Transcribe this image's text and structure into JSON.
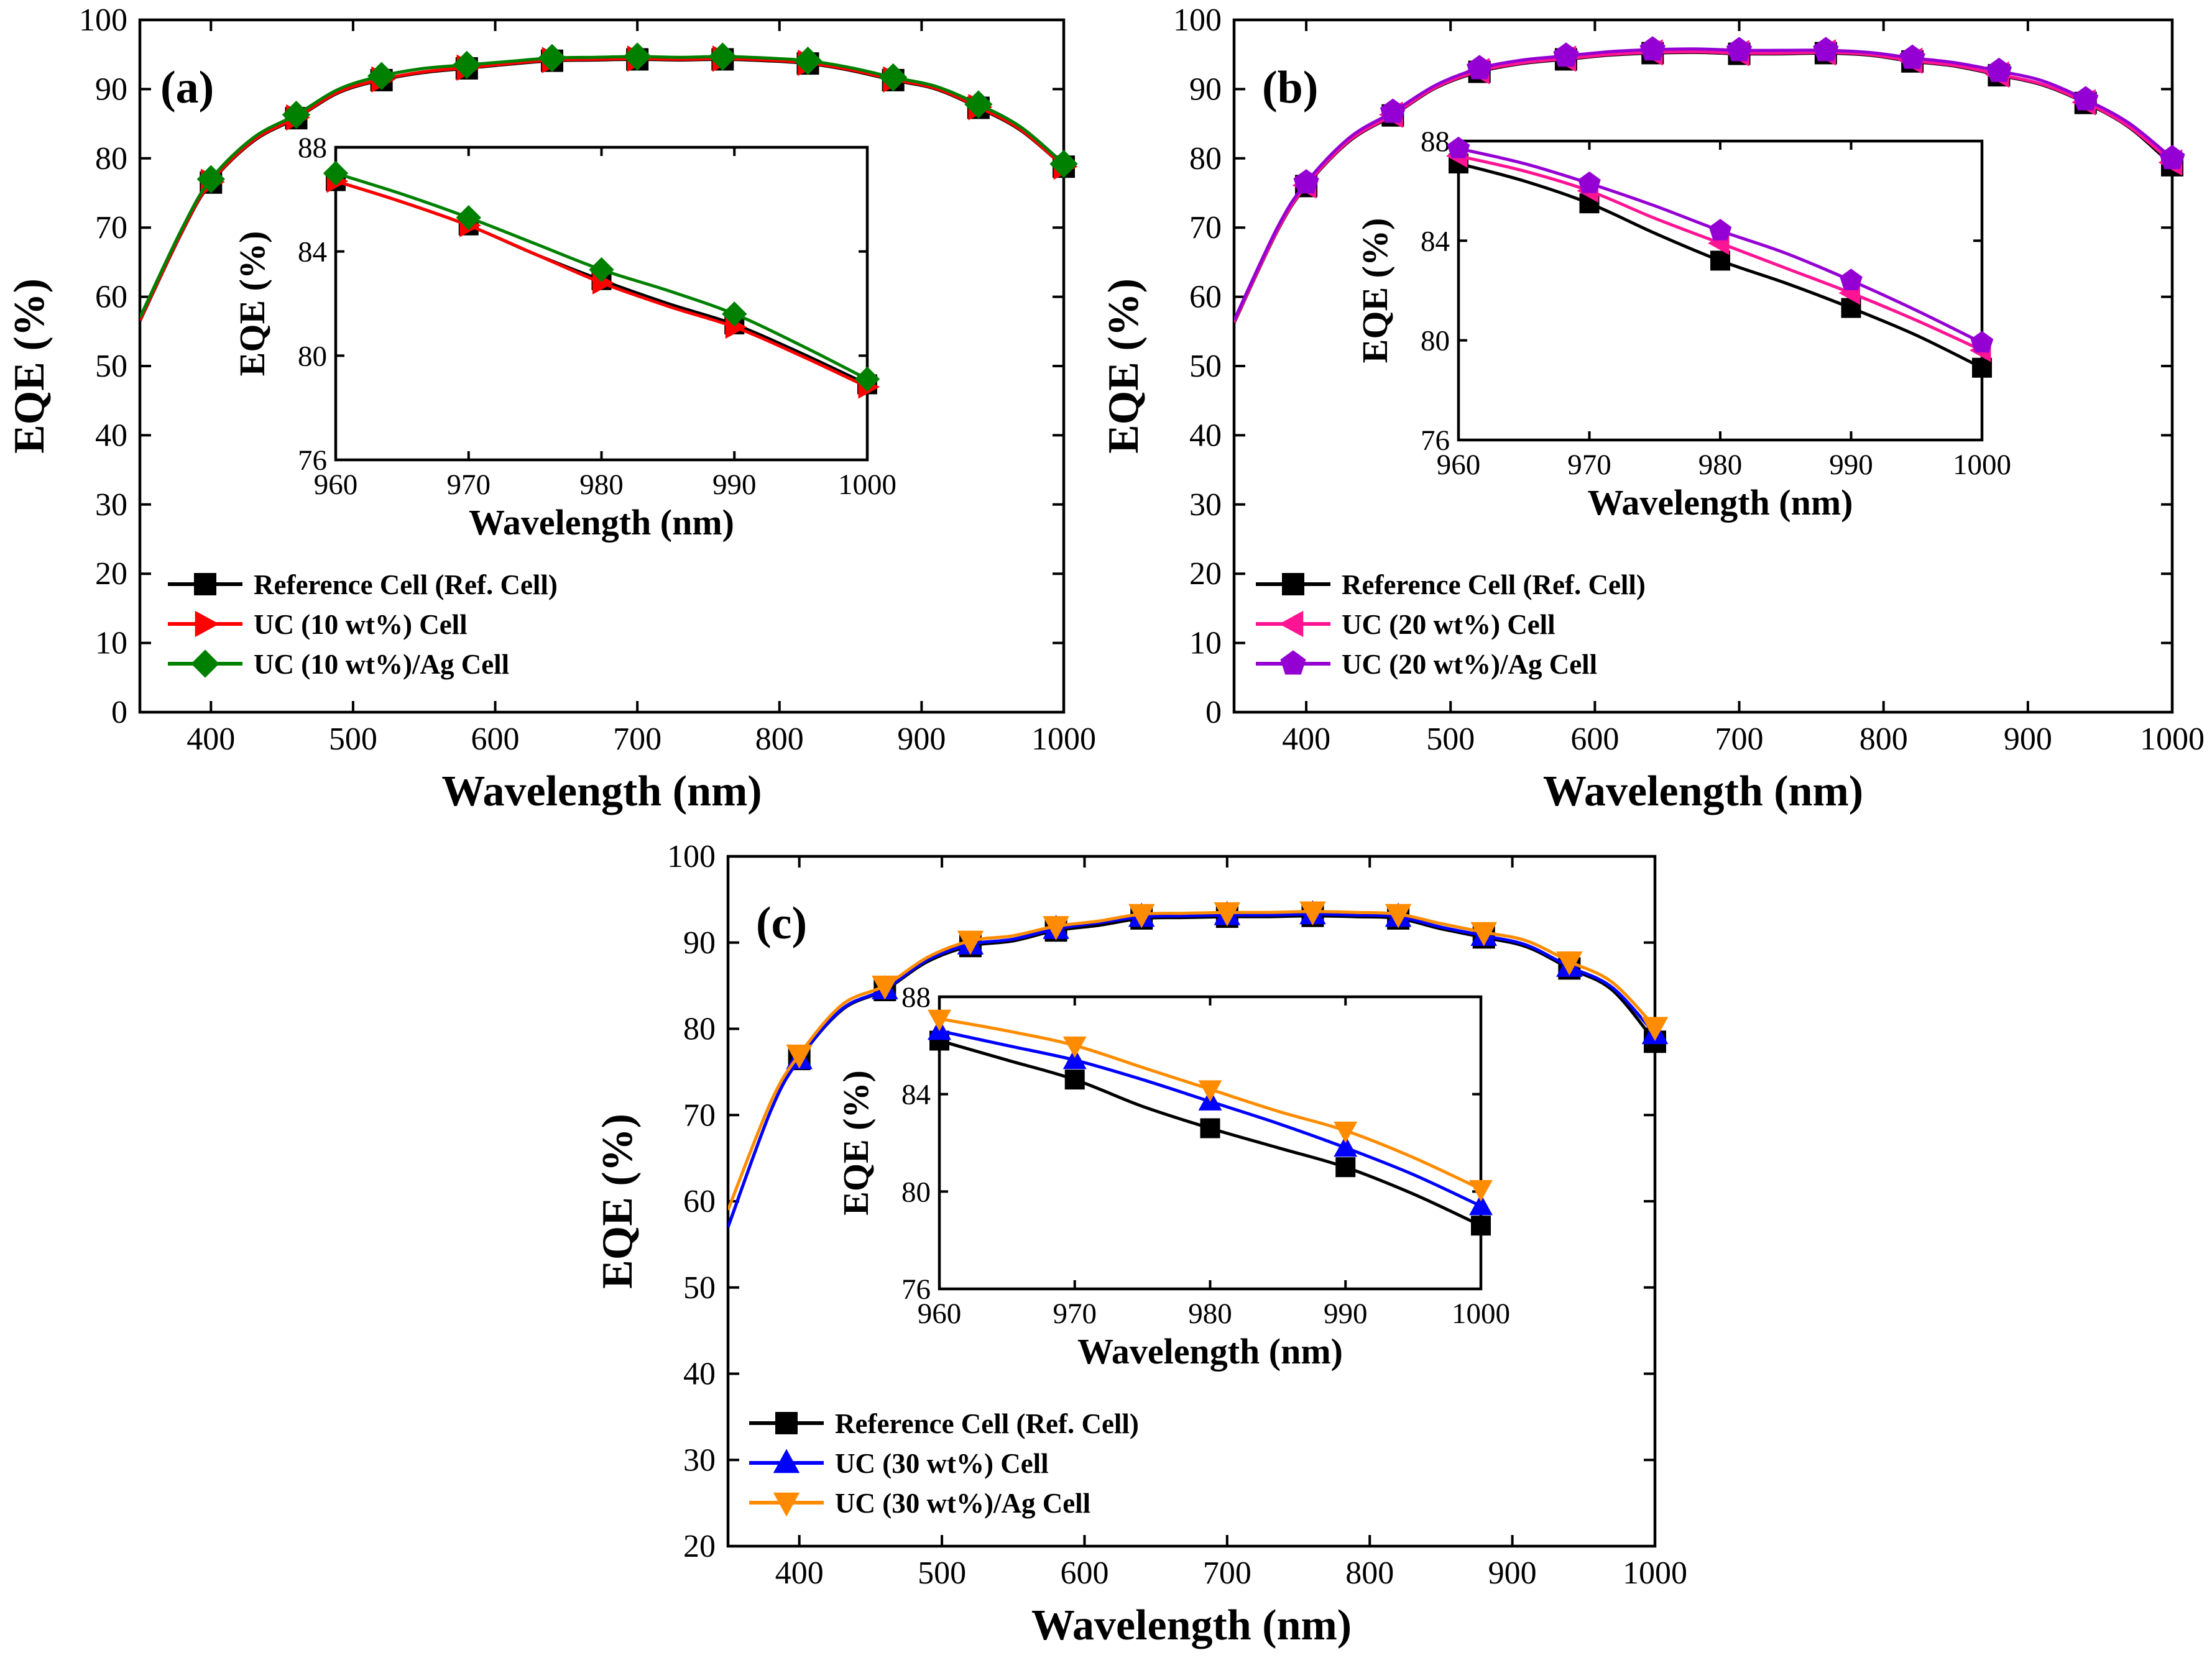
{
  "chart_data": [
    {
      "panel": "(a)",
      "type": "line",
      "xlabel": "Wavelength (nm)",
      "ylabel": "EQE (%)",
      "xlim": [
        350,
        1000
      ],
      "ylim": [
        0,
        100
      ],
      "xticks": [
        400,
        500,
        600,
        700,
        800,
        900,
        1000
      ],
      "yticks": [
        0,
        10,
        20,
        30,
        40,
        50,
        60,
        70,
        80,
        90,
        100
      ],
      "x": [
        350,
        380,
        400,
        430,
        460,
        490,
        520,
        550,
        580,
        610,
        640,
        670,
        700,
        730,
        760,
        790,
        820,
        850,
        880,
        910,
        940,
        970,
        1000
      ],
      "series": [
        {
          "name": "Reference Cell (Ref. Cell)",
          "color": "#000000",
          "marker": "square",
          "values": [
            56.5,
            69.5,
            76.5,
            82.5,
            85.8,
            89.5,
            91.3,
            92.4,
            93.0,
            93.6,
            94.1,
            94.2,
            94.3,
            94.2,
            94.3,
            94.1,
            93.7,
            92.7,
            91.3,
            90.0,
            87.3,
            84.0,
            78.8
          ]
        },
        {
          "name": "UC (10 wt%) Cell",
          "color": "#ff0000",
          "marker": "triangle-right",
          "values": [
            56.6,
            69.6,
            76.6,
            82.6,
            85.9,
            89.6,
            91.4,
            92.5,
            93.1,
            93.7,
            94.2,
            94.3,
            94.4,
            94.3,
            94.4,
            94.2,
            93.8,
            92.8,
            91.4,
            90.1,
            87.4,
            84.1,
            78.8
          ]
        },
        {
          "name": "UC (10 wt%)/Ag Cell",
          "color": "#008000",
          "marker": "diamond",
          "values": [
            57.0,
            70.0,
            77.0,
            83.0,
            86.3,
            90.0,
            91.9,
            93.0,
            93.5,
            94.0,
            94.5,
            94.6,
            94.7,
            94.6,
            94.7,
            94.5,
            94.1,
            93.1,
            91.7,
            90.4,
            87.8,
            84.5,
            79.2
          ]
        }
      ],
      "marker_x": [
        400,
        460,
        520,
        580,
        640,
        700,
        760,
        820,
        880,
        940,
        1000
      ],
      "inset": {
        "xlabel": "Wavelength (nm)",
        "ylabel": "EQE (%)",
        "xlim": [
          960,
          1000
        ],
        "ylim": [
          76,
          88
        ],
        "xticks": [
          960,
          970,
          980,
          990,
          1000
        ],
        "yticks": [
          76,
          80,
          84,
          88
        ],
        "x": [
          960,
          965,
          970,
          975,
          980,
          985,
          990,
          995,
          1000
        ],
        "marker_x": [
          960,
          970,
          980,
          990,
          1000
        ],
        "series": [
          {
            "name": "Reference Cell (Ref. Cell)",
            "values": [
              86.7,
              85.9,
              85.0,
              83.9,
              82.9,
              82.0,
              81.2,
              80.1,
              78.9
            ]
          },
          {
            "name": "UC (10 wt%) Cell",
            "values": [
              86.7,
              85.9,
              85.0,
              83.9,
              82.8,
              81.9,
              81.1,
              80.0,
              78.8
            ]
          },
          {
            "name": "UC (10 wt%)/Ag Cell",
            "values": [
              87.0,
              86.2,
              85.3,
              84.3,
              83.3,
              82.5,
              81.6,
              80.4,
              79.1
            ]
          }
        ]
      }
    },
    {
      "panel": "(b)",
      "type": "line",
      "xlabel": "Wavelength (nm)",
      "ylabel": "EQE (%)",
      "xlim": [
        350,
        1000
      ],
      "ylim": [
        0,
        100
      ],
      "xticks": [
        400,
        500,
        600,
        700,
        800,
        900,
        1000
      ],
      "yticks": [
        0,
        10,
        20,
        30,
        40,
        50,
        60,
        70,
        80,
        90,
        100
      ],
      "x": [
        350,
        380,
        400,
        430,
        460,
        490,
        520,
        550,
        580,
        610,
        640,
        670,
        700,
        730,
        760,
        790,
        820,
        850,
        880,
        910,
        940,
        970,
        1000
      ],
      "series": [
        {
          "name": "Reference Cell (Ref. Cell)",
          "color": "#000000",
          "marker": "square",
          "values": [
            56.2,
            69.5,
            76.0,
            82.5,
            86.2,
            90.2,
            92.5,
            93.7,
            94.3,
            94.9,
            95.2,
            95.3,
            95.1,
            95.1,
            95.2,
            94.9,
            94.0,
            93.3,
            92.0,
            90.6,
            88.0,
            84.5,
            79.0
          ]
        },
        {
          "name": "UC (20 wt%) Cell",
          "color": "#ff1493",
          "marker": "triangle-left",
          "values": [
            56.3,
            69.6,
            76.1,
            82.6,
            86.3,
            90.3,
            92.6,
            93.8,
            94.4,
            95.0,
            95.3,
            95.4,
            95.2,
            95.2,
            95.3,
            95.0,
            94.1,
            93.4,
            92.1,
            90.7,
            88.1,
            84.6,
            79.4
          ]
        },
        {
          "name": "UC (20 wt%)/Ag Cell",
          "color": "#9400d3",
          "marker": "pentagon",
          "values": [
            56.6,
            70.0,
            76.5,
            83.0,
            86.7,
            90.6,
            93.0,
            94.2,
            94.8,
            95.4,
            95.7,
            95.8,
            95.6,
            95.6,
            95.6,
            95.3,
            94.5,
            93.8,
            92.6,
            91.2,
            88.5,
            85.1,
            80.0
          ]
        }
      ],
      "marker_x": [
        400,
        460,
        520,
        580,
        640,
        700,
        760,
        820,
        880,
        940,
        1000
      ],
      "inset": {
        "xlabel": "Wavelength (nm)",
        "ylabel": "EQE (%)",
        "xlim": [
          960,
          1000
        ],
        "ylim": [
          76,
          88
        ],
        "xticks": [
          960,
          970,
          980,
          990,
          1000
        ],
        "yticks": [
          76,
          80,
          84,
          88
        ],
        "x": [
          960,
          965,
          970,
          975,
          980,
          985,
          990,
          995,
          1000
        ],
        "marker_x": [
          960,
          970,
          980,
          990,
          1000
        ],
        "series": [
          {
            "name": "Reference Cell (Ref. Cell)",
            "values": [
              87.1,
              86.4,
              85.5,
              84.3,
              83.2,
              82.3,
              81.3,
              80.2,
              78.9
            ]
          },
          {
            "name": "UC (20 wt%) Cell",
            "values": [
              87.4,
              86.8,
              86.0,
              84.9,
              83.9,
              82.9,
              81.9,
              80.8,
              79.6
            ]
          },
          {
            "name": "UC (20 wt%)/Ag Cell",
            "values": [
              87.7,
              87.1,
              86.3,
              85.4,
              84.4,
              83.5,
              82.4,
              81.2,
              79.9
            ]
          }
        ]
      }
    },
    {
      "panel": "(c)",
      "type": "line",
      "xlabel": "Wavelength (nm)",
      "ylabel": "EQE (%)",
      "xlim": [
        350,
        1000
      ],
      "ylim": [
        20,
        100
      ],
      "xticks": [
        400,
        500,
        600,
        700,
        800,
        900,
        1000
      ],
      "yticks": [
        20,
        30,
        40,
        50,
        60,
        70,
        80,
        90,
        100
      ],
      "x": [
        350,
        380,
        400,
        430,
        460,
        490,
        520,
        550,
        580,
        610,
        640,
        670,
        700,
        730,
        760,
        790,
        820,
        850,
        880,
        910,
        940,
        970,
        1000
      ],
      "series": [
        {
          "name": "Reference Cell (Ref. Cell)",
          "color": "#000000",
          "marker": "square",
          "values": [
            57.0,
            70.5,
            76.5,
            82.2,
            84.5,
            87.8,
            89.6,
            90.2,
            91.4,
            92.0,
            92.8,
            92.9,
            93.0,
            93.0,
            93.1,
            93.0,
            92.8,
            91.6,
            90.6,
            89.5,
            87.0,
            84.5,
            78.5
          ]
        },
        {
          "name": "UC (30 wt%) Cell",
          "color": "#0000ff",
          "marker": "triangle-up",
          "values": [
            57.0,
            70.5,
            76.5,
            82.3,
            84.6,
            88.0,
            89.8,
            90.4,
            91.6,
            92.3,
            93.0,
            93.1,
            93.2,
            93.2,
            93.3,
            93.2,
            93.0,
            91.8,
            90.8,
            89.7,
            87.2,
            84.8,
            79.4
          ]
        },
        {
          "name": "UC (30 wt%)/Ag Cell",
          "color": "#ff8c00",
          "marker": "triangle-down",
          "values": [
            59.0,
            71.5,
            77.0,
            82.8,
            85.0,
            88.3,
            90.2,
            90.8,
            91.9,
            92.5,
            93.3,
            93.4,
            93.5,
            93.5,
            93.6,
            93.5,
            93.3,
            92.2,
            91.2,
            90.2,
            87.8,
            85.4,
            80.2
          ]
        }
      ],
      "marker_x": [
        400,
        460,
        520,
        580,
        640,
        700,
        760,
        820,
        880,
        940,
        1000
      ],
      "inset": {
        "xlabel": "Wavelength (nm)",
        "ylabel": "EQE (%)",
        "xlim": [
          960,
          1000
        ],
        "ylim": [
          76,
          88
        ],
        "xticks": [
          960,
          970,
          980,
          990,
          1000
        ],
        "yticks": [
          76,
          80,
          84,
          88
        ],
        "x": [
          960,
          965,
          970,
          975,
          980,
          985,
          990,
          995,
          1000
        ],
        "marker_x": [
          960,
          970,
          980,
          990,
          1000
        ],
        "series": [
          {
            "name": "Reference Cell (Ref. Cell)",
            "values": [
              86.2,
              85.4,
              84.6,
              83.5,
              82.6,
              81.8,
              81.0,
              79.9,
              78.6
            ]
          },
          {
            "name": "UC (30 wt%) Cell",
            "values": [
              86.6,
              86.0,
              85.4,
              84.6,
              83.7,
              82.8,
              81.8,
              80.7,
              79.4
            ]
          },
          {
            "name": "UC (30 wt%)/Ag Cell",
            "values": [
              87.1,
              86.6,
              86.0,
              85.1,
              84.2,
              83.3,
              82.5,
              81.4,
              80.1
            ]
          }
        ]
      }
    }
  ]
}
